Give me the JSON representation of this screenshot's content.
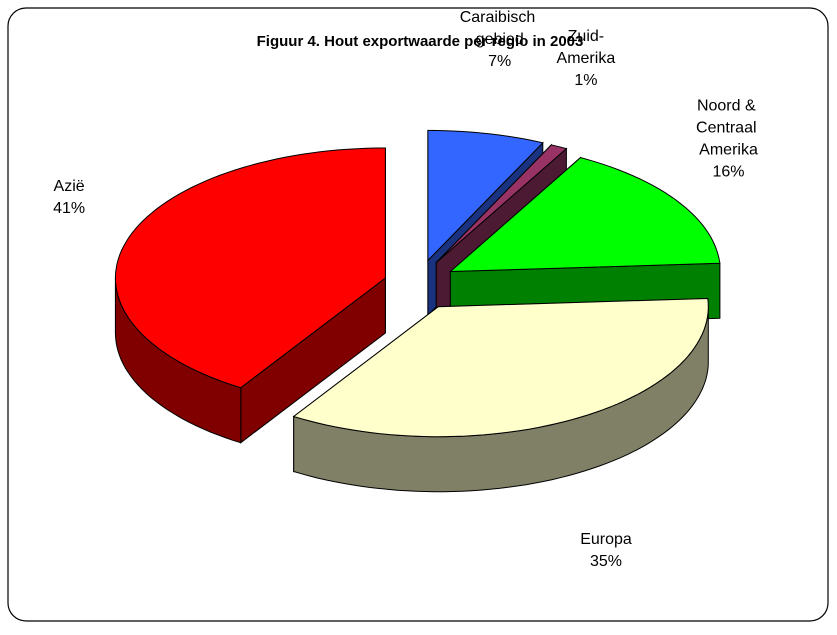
{
  "chart_data": {
    "type": "pie3d",
    "title": "Figuur 4. Hout exportwaarde per regio in 2003",
    "categories": [
      "Caraibisch gebied",
      "Zuid-Amerika",
      "Noord & Centraal Amerika",
      "Europa",
      "Azië"
    ],
    "values": [
      7,
      1,
      16,
      35,
      41
    ],
    "value_labels": [
      "7%",
      "1%",
      "16%",
      "35%",
      "41%"
    ],
    "colors": [
      "#3366ff",
      "#993366",
      "#00ff00",
      "#ffffcc",
      "#ff0000"
    ]
  }
}
